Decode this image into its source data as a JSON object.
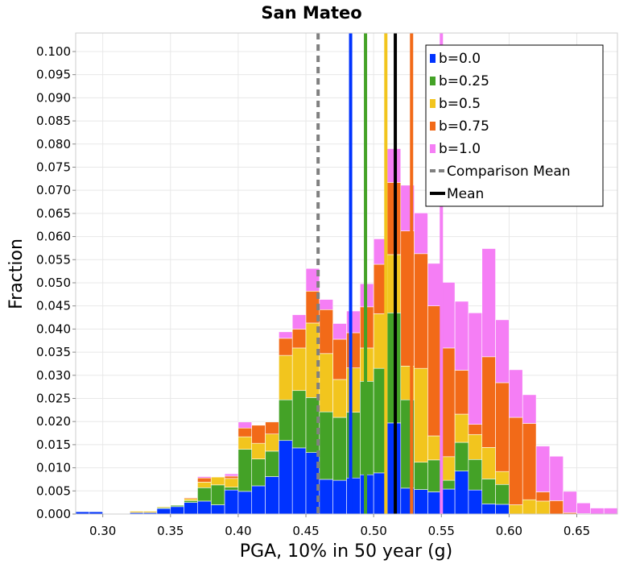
{
  "chart_data": {
    "type": "bar",
    "subtype": "stacked-histogram",
    "title": "San Mateo",
    "xlabel": "PGA, 10% in 50 year (g)",
    "ylabel": "Fraction",
    "xlim": [
      0.28,
      0.68
    ],
    "ylim": [
      0,
      0.104
    ],
    "bin_width": 0.01,
    "x_ticks": [
      "0.30",
      "0.35",
      "0.40",
      "0.45",
      "0.50",
      "0.55",
      "0.60",
      "0.65"
    ],
    "x_tick_values": [
      0.3,
      0.35,
      0.4,
      0.45,
      0.5,
      0.55,
      0.6,
      0.65
    ],
    "y_ticks": [
      "0.000",
      "0.005",
      "0.010",
      "0.015",
      "0.020",
      "0.025",
      "0.030",
      "0.035",
      "0.040",
      "0.045",
      "0.050",
      "0.055",
      "0.060",
      "0.065",
      "0.070",
      "0.075",
      "0.080",
      "0.085",
      "0.090",
      "0.095",
      "0.100"
    ],
    "y_tick_values": [
      0.0,
      0.005,
      0.01,
      0.015,
      0.02,
      0.025,
      0.03,
      0.035,
      0.04,
      0.045,
      0.05,
      0.055,
      0.06,
      0.065,
      0.07,
      0.075,
      0.08,
      0.085,
      0.09,
      0.095,
      0.1
    ],
    "grid": true,
    "legend_position": "top-right",
    "bin_starts": [
      0.28,
      0.29,
      0.3,
      0.31,
      0.32,
      0.33,
      0.34,
      0.35,
      0.36,
      0.37,
      0.38,
      0.39,
      0.4,
      0.41,
      0.42,
      0.43,
      0.44,
      0.45,
      0.46,
      0.47,
      0.48,
      0.49,
      0.5,
      0.51,
      0.52,
      0.53,
      0.54,
      0.55,
      0.56,
      0.57,
      0.58,
      0.59,
      0.6,
      0.61,
      0.62,
      0.63,
      0.64,
      0.65,
      0.66,
      0.67
    ],
    "series": [
      {
        "name": "b=0.0",
        "color": "#0033ff",
        "values": [
          0.0005,
          0.0005,
          0,
          0,
          0.0003,
          0.0003,
          0.0012,
          0.0016,
          0.0025,
          0.0028,
          0.002,
          0.0052,
          0.0049,
          0.0061,
          0.0081,
          0.0159,
          0.0143,
          0.0133,
          0.0075,
          0.0073,
          0.0078,
          0.0085,
          0.0089,
          0.0197,
          0.0056,
          0.0053,
          0.0048,
          0.0054,
          0.0093,
          0.0052,
          0.0022,
          0.0021,
          0,
          0,
          0,
          0,
          0,
          0,
          0,
          0
        ]
      },
      {
        "name": "b=0.25",
        "color": "#44a227",
        "values": [
          0,
          0.0001,
          0,
          0,
          0,
          0,
          0.0002,
          0.0003,
          0.0004,
          0.0029,
          0.0043,
          0.0006,
          0.0091,
          0.0058,
          0.0055,
          0.0088,
          0.0124,
          0.0119,
          0.0146,
          0.0136,
          0.0142,
          0.0202,
          0.0226,
          0.0238,
          0.0191,
          0.0059,
          0.0069,
          0.0019,
          0.0062,
          0.0066,
          0.0054,
          0.0043,
          0,
          0,
          0,
          0,
          0,
          0,
          0,
          0
        ]
      },
      {
        "name": "b=0.5",
        "color": "#f2c51e",
        "values": [
          0,
          0,
          0,
          0,
          0.0003,
          0.0003,
          0.0002,
          0.0001,
          0.0004,
          0.0012,
          0.0017,
          0.0019,
          0.0027,
          0.0034,
          0.0037,
          0.0096,
          0.0092,
          0.0161,
          0.0126,
          0.0082,
          0.0096,
          0.0072,
          0.0118,
          0.0126,
          0.0073,
          0.0203,
          0.0052,
          0.0051,
          0.0061,
          0.0054,
          0.0068,
          0.0028,
          0.002,
          0.0031,
          0.0028,
          0,
          0,
          0,
          0,
          0
        ]
      },
      {
        "name": "b=0.75",
        "color": "#f26a18",
        "values": [
          0,
          0,
          0,
          0,
          0,
          0,
          0,
          0,
          0.0002,
          0.0009,
          0,
          0.0005,
          0.0019,
          0.0039,
          0.0026,
          0.0037,
          0.0041,
          0.0069,
          0.0095,
          0.0087,
          0.0076,
          0.0089,
          0.0107,
          0.0156,
          0.0292,
          0.0248,
          0.0281,
          0.0235,
          0.0095,
          0.0022,
          0.0196,
          0.0192,
          0.0189,
          0.0165,
          0.002,
          0.0029,
          0.0003,
          0.0001,
          0,
          0
        ]
      },
      {
        "name": "b=1.0",
        "color": "#f57ef5",
        "values": [
          0,
          0,
          0,
          0,
          0,
          0,
          0,
          0,
          0,
          0.0003,
          0,
          0.0005,
          0.0013,
          0,
          0,
          0.0014,
          0.0031,
          0.0049,
          0.0022,
          0.0034,
          0.0047,
          0.005,
          0.0055,
          0.0073,
          0.0099,
          0.0088,
          0.0092,
          0.0142,
          0.0149,
          0.0241,
          0.0234,
          0.0136,
          0.0103,
          0.0062,
          0.0099,
          0.0096,
          0.0046,
          0.0023,
          0.0013,
          0.0013
        ]
      }
    ],
    "reference_lines": [
      {
        "name": "b=0.0",
        "x": 0.483,
        "color": "#0033ff",
        "style": "solid"
      },
      {
        "name": "b=0.25",
        "x": 0.494,
        "color": "#44a227",
        "style": "solid"
      },
      {
        "name": "b=0.5",
        "x": 0.509,
        "color": "#f2c51e",
        "style": "solid"
      },
      {
        "name": "b=0.75",
        "x": 0.528,
        "color": "#f26a18",
        "style": "solid"
      },
      {
        "name": "b=1.0",
        "x": 0.55,
        "color": "#f57ef5",
        "style": "solid"
      },
      {
        "name": "Comparison Mean",
        "x": 0.459,
        "color": "#808080",
        "style": "dashed"
      },
      {
        "name": "Mean",
        "x": 0.516,
        "color": "#000000",
        "style": "solid"
      }
    ],
    "legend": [
      {
        "label": "b=0.0",
        "color": "#0033ff",
        "marker": "square"
      },
      {
        "label": "b=0.25",
        "color": "#44a227",
        "marker": "square"
      },
      {
        "label": "b=0.5",
        "color": "#f2c51e",
        "marker": "square"
      },
      {
        "label": "b=0.75",
        "color": "#f26a18",
        "marker": "square"
      },
      {
        "label": "b=1.0",
        "color": "#f57ef5",
        "marker": "square"
      },
      {
        "label": "Comparison Mean",
        "color": "#808080",
        "marker": "dashed-line"
      },
      {
        "label": "Mean",
        "color": "#000000",
        "marker": "line"
      }
    ]
  }
}
